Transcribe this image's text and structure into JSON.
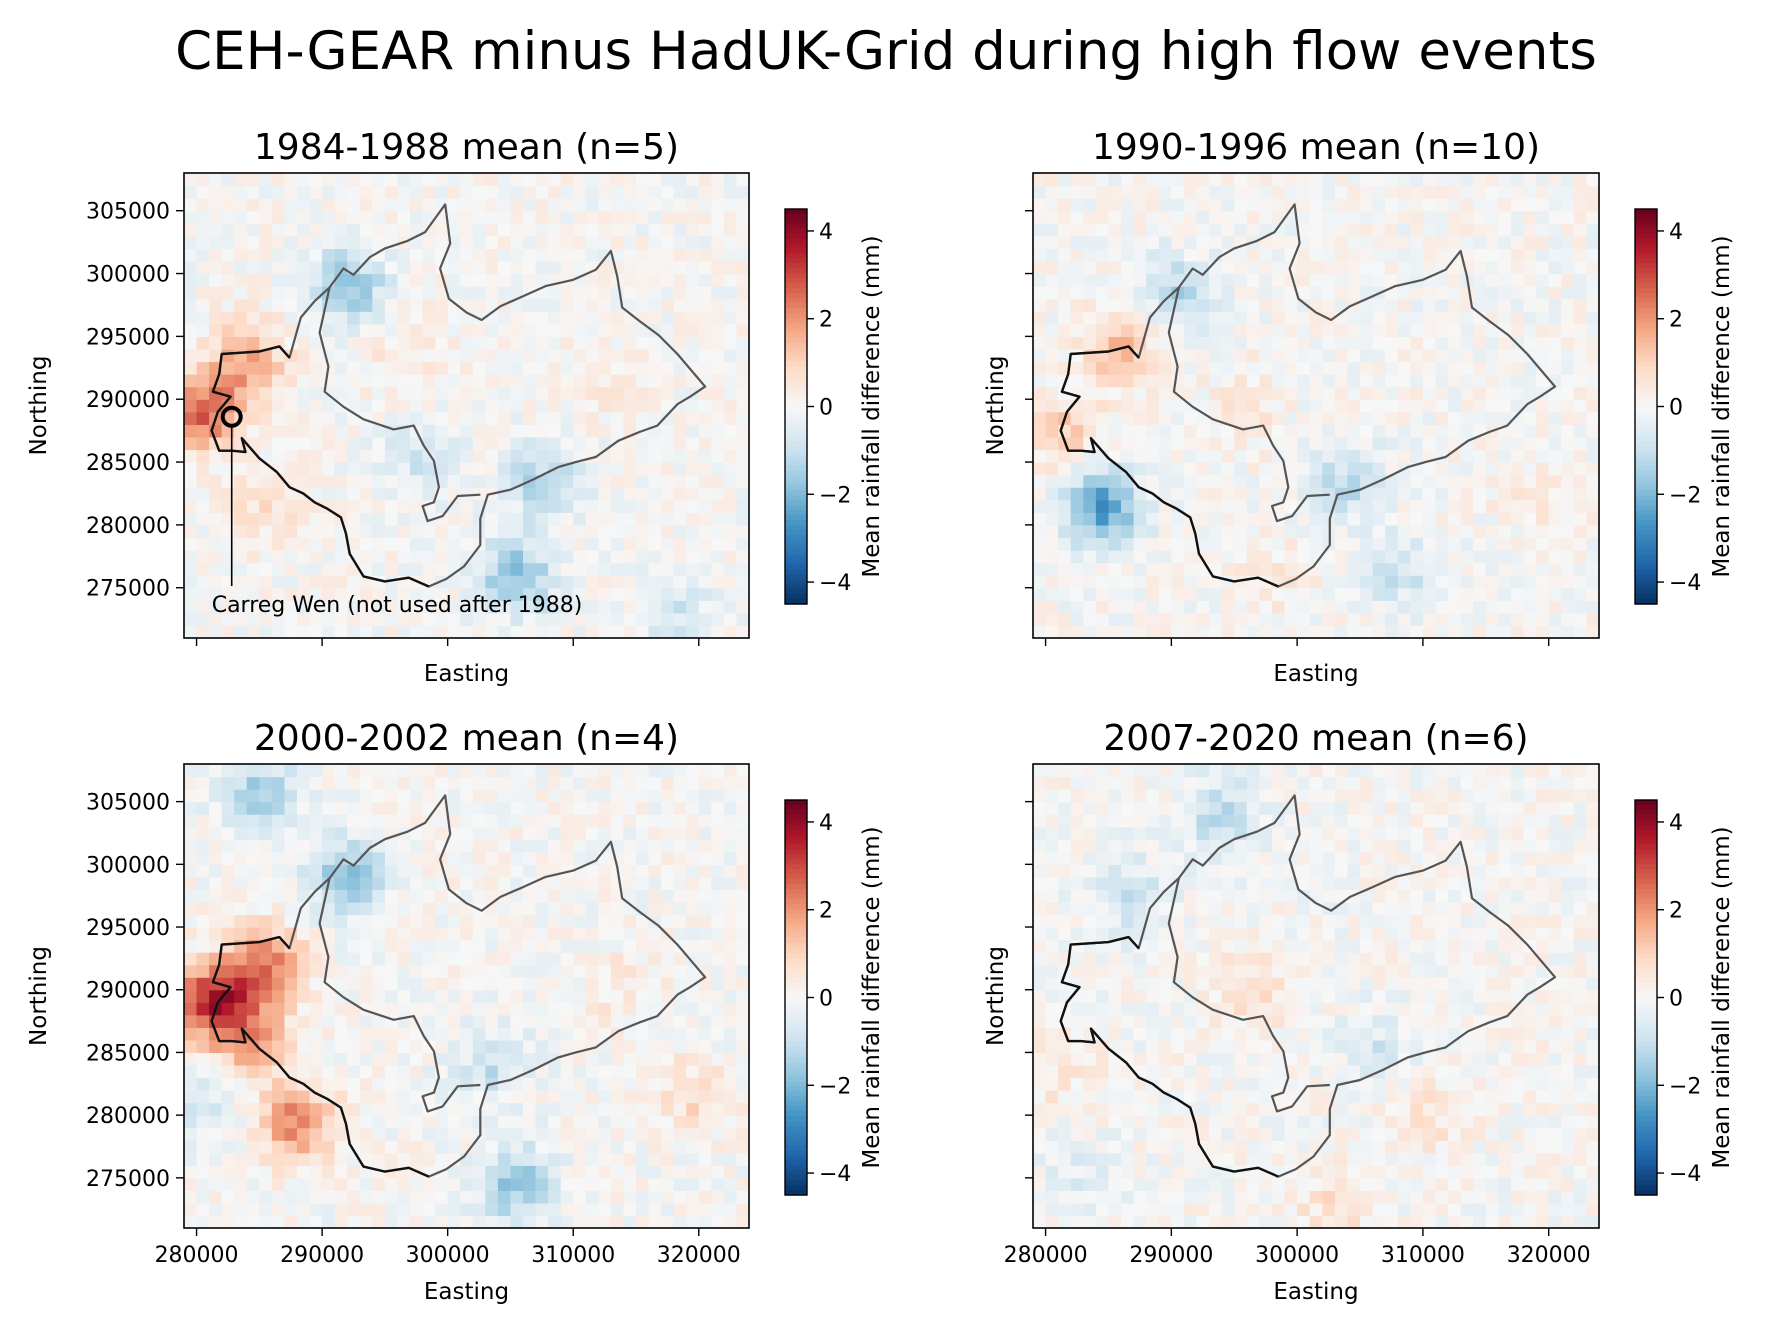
{
  "figure": {
    "title": "CEH-GEAR minus HadUK-Grid during high flow events"
  },
  "chart_data": [
    {
      "type": "heatmap",
      "title": "1984-1988 mean (n=5)",
      "xlabel": "Easting",
      "ylabel": "Northing",
      "xlim": [
        279000,
        324000
      ],
      "ylim": [
        271000,
        308000
      ],
      "xticks": [
        "280000",
        "290000",
        "300000",
        "310000",
        "320000"
      ],
      "yticks": [
        "305000",
        "300000",
        "295000",
        "290000",
        "285000",
        "280000",
        "275000"
      ],
      "colorbar": {
        "label": "Mean rainfall difference (mm)",
        "range": [
          -4.5,
          4.5
        ],
        "ticks": [
          "4",
          "2",
          "0",
          "−2",
          "−4"
        ],
        "colormap": "RdBu_r"
      },
      "annotation": {
        "text": "Carreg Wen (not used after 1988)",
        "x": 282800,
        "y": 288600
      },
      "hotspots": [
        {
          "x": 280500,
          "y": 289000,
          "value": 2.6
        },
        {
          "x": 284000,
          "y": 293000,
          "value": 1.8
        },
        {
          "x": 292000,
          "y": 299000,
          "value": -1.8
        },
        {
          "x": 305500,
          "y": 276000,
          "value": -1.9
        },
        {
          "x": 307500,
          "y": 283500,
          "value": -1.3
        },
        {
          "x": 298000,
          "y": 285500,
          "value": -0.9
        },
        {
          "x": 285500,
          "y": 281000,
          "value": 0.7
        },
        {
          "x": 313000,
          "y": 292000,
          "value": 0.4
        },
        {
          "x": 296500,
          "y": 293000,
          "value": 0.5
        },
        {
          "x": 318500,
          "y": 273000,
          "value": -0.8
        }
      ]
    },
    {
      "type": "heatmap",
      "title": "1990-1996 mean (n=10)",
      "xlabel": "Easting",
      "ylabel": "Northing",
      "xlim": [
        279000,
        324000
      ],
      "ylim": [
        271000,
        308000
      ],
      "xticks": [
        "280000",
        "290000",
        "300000",
        "310000",
        "320000"
      ],
      "colorbar": {
        "label": "Mean rainfall difference (mm)",
        "range": [
          -4.5,
          4.5
        ],
        "ticks": [
          "4",
          "2",
          "0",
          "−2",
          "−4"
        ],
        "colormap": "RdBu_r"
      },
      "hotspots": [
        {
          "x": 284500,
          "y": 281500,
          "value": -2.6
        },
        {
          "x": 286000,
          "y": 294000,
          "value": 1.5
        },
        {
          "x": 281500,
          "y": 287500,
          "value": 1.1
        },
        {
          "x": 290500,
          "y": 298500,
          "value": -1.3
        },
        {
          "x": 304000,
          "y": 283500,
          "value": -1.1
        },
        {
          "x": 308000,
          "y": 276500,
          "value": -1.0
        },
        {
          "x": 296000,
          "y": 289500,
          "value": 0.5
        },
        {
          "x": 298000,
          "y": 276000,
          "value": 0.5
        },
        {
          "x": 319000,
          "y": 282500,
          "value": 0.4
        }
      ]
    },
    {
      "type": "heatmap",
      "title": "2000-2002 mean (n=4)",
      "xlabel": "Easting",
      "ylabel": "Northing",
      "xlim": [
        279000,
        324000
      ],
      "ylim": [
        271000,
        308000
      ],
      "xticks": [
        "280000",
        "290000",
        "300000",
        "310000",
        "320000"
      ],
      "yticks": [
        "305000",
        "300000",
        "295000",
        "290000",
        "285000",
        "280000",
        "275000"
      ],
      "colorbar": {
        "label": "Mean rainfall difference (mm)",
        "range": [
          -4.5,
          4.5
        ],
        "ticks": [
          "4",
          "2",
          "0",
          "−2",
          "−4"
        ],
        "colormap": "RdBu_r"
      },
      "hotspots": [
        {
          "x": 281500,
          "y": 289000,
          "value": 3.6
        },
        {
          "x": 285500,
          "y": 292000,
          "value": 2.3
        },
        {
          "x": 288000,
          "y": 279500,
          "value": 2.2
        },
        {
          "x": 284500,
          "y": 286000,
          "value": 1.6
        },
        {
          "x": 292000,
          "y": 299000,
          "value": -2.0
        },
        {
          "x": 285000,
          "y": 305500,
          "value": -1.7
        },
        {
          "x": 305500,
          "y": 274500,
          "value": -1.7
        },
        {
          "x": 303500,
          "y": 284000,
          "value": -1.0
        },
        {
          "x": 314000,
          "y": 290000,
          "value": 0.5
        },
        {
          "x": 319500,
          "y": 281500,
          "value": 0.8
        },
        {
          "x": 280500,
          "y": 281000,
          "value": -0.8
        }
      ]
    },
    {
      "type": "heatmap",
      "title": "2007-2020 mean (n=6)",
      "xlabel": "Easting",
      "ylabel": "Northing",
      "xlim": [
        279000,
        324000
      ],
      "ylim": [
        271000,
        308000
      ],
      "xticks": [
        "280000",
        "290000",
        "300000",
        "310000",
        "320000"
      ],
      "colorbar": {
        "label": "Mean rainfall difference (mm)",
        "range": [
          -4.5,
          4.5
        ],
        "ticks": [
          "4",
          "2",
          "0",
          "−2",
          "−4"
        ],
        "colormap": "RdBu_r"
      },
      "hotspots": [
        {
          "x": 294000,
          "y": 304000,
          "value": -1.2
        },
        {
          "x": 287000,
          "y": 297500,
          "value": -1.0
        },
        {
          "x": 296500,
          "y": 290000,
          "value": 0.7
        },
        {
          "x": 311000,
          "y": 280000,
          "value": 0.6
        },
        {
          "x": 303000,
          "y": 272500,
          "value": 0.7
        },
        {
          "x": 281000,
          "y": 283500,
          "value": 0.5
        },
        {
          "x": 306500,
          "y": 285500,
          "value": -0.7
        },
        {
          "x": 283000,
          "y": 275000,
          "value": -0.5
        }
      ]
    }
  ]
}
